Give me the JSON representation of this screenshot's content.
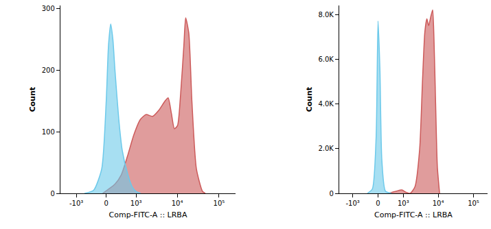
{
  "chart_data": [
    {
      "type": "area",
      "x_label": "Comp-FITC-A :: LRBA",
      "y_label": "Count",
      "xlim": [
        -2500,
        250000
      ],
      "xticks": [
        {
          "value": -1000,
          "label": "-10³"
        },
        0,
        {
          "value": 1000,
          "label": "10³"
        },
        {
          "value": 10000,
          "label": "10⁴"
        },
        {
          "value": 100000,
          "label": "10⁵"
        }
      ],
      "ylim": [
        0,
        305
      ],
      "yticks": [
        0,
        100,
        200,
        300
      ],
      "grid": false,
      "series": [
        {
          "color": "#cc5a5a",
          "x": [
            -80,
            200,
            370,
            580,
            870,
            1280,
            1780,
            2550,
            3620,
            5100,
            6050,
            7230,
            8560,
            10150,
            12000,
            14400,
            15900,
            18900,
            22400,
            28700,
            40300,
            47000
          ],
          "values": [
            0,
            15,
            30,
            60,
            95,
            120,
            128,
            125,
            135,
            150,
            155,
            130,
            105,
            110,
            160,
            240,
            285,
            260,
            150,
            40,
            3,
            0
          ]
        },
        {
          "color": "#6cc9ea",
          "x": [
            -600,
            -300,
            -100,
            0,
            50,
            100,
            150,
            200,
            300,
            400,
            600,
            800,
            1000,
            1300
          ],
          "values": [
            0,
            5,
            40,
            150,
            240,
            275,
            250,
            200,
            120,
            70,
            30,
            10,
            3,
            0
          ]
        }
      ]
    },
    {
      "type": "area",
      "x_label": "Comp-FITC-A :: LRBA",
      "y_label": "Count",
      "xlim": [
        -2500,
        250000
      ],
      "xticks": [
        {
          "value": -1000,
          "label": "-10³"
        },
        0,
        {
          "value": 1000,
          "label": "10³"
        },
        {
          "value": 10000,
          "label": "10⁴"
        },
        {
          "value": 100000,
          "label": "10⁵"
        }
      ],
      "ylim": [
        0,
        8400
      ],
      "yticks": [
        0,
        {
          "value": 2000,
          "label": "2.0K"
        },
        {
          "value": 4000,
          "label": "4.0K"
        },
        {
          "value": 6000,
          "label": "6.0K"
        },
        {
          "value": 8000,
          "label": "8.0K"
        }
      ],
      "grid": false,
      "series": [
        {
          "color": "#cc5a5a",
          "x": [
            300,
            600,
            900,
            1200,
            1600,
            2200,
            3000,
            3600,
            4200,
            4800,
            5400,
            6200,
            7000,
            7600,
            8500,
            9500,
            11000
          ],
          "values": [
            0,
            100,
            150,
            50,
            0,
            300,
            2000,
            5000,
            7200,
            7800,
            7500,
            7900,
            8200,
            7000,
            4000,
            1200,
            0
          ]
        },
        {
          "color": "#6cc9ea",
          "x": [
            -300,
            -150,
            -50,
            0,
            50,
            100,
            200,
            400
          ],
          "values": [
            0,
            200,
            2500,
            7700,
            5500,
            1500,
            100,
            0
          ]
        }
      ]
    }
  ]
}
